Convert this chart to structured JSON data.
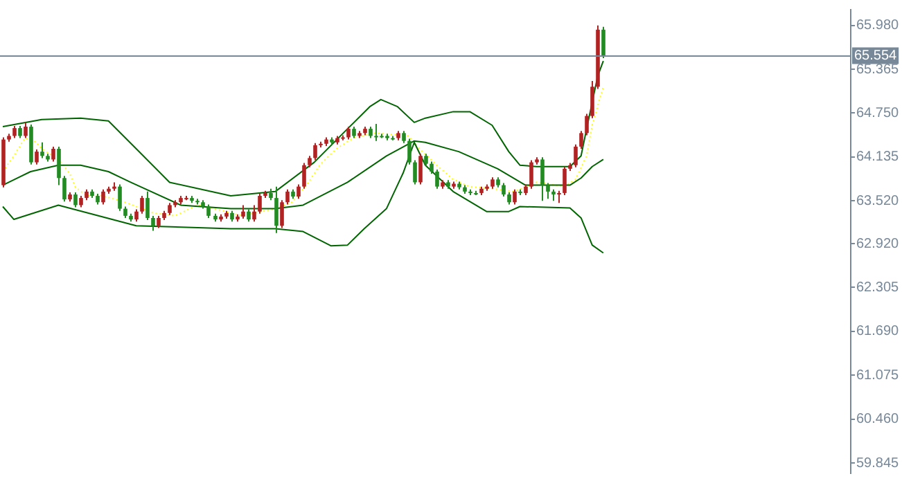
{
  "chart_data": {
    "type": "candlestick",
    "categories": [
      null,
      null,
      null,
      null,
      null,
      null,
      null,
      null,
      null,
      null,
      null,
      null,
      null,
      null,
      null,
      null,
      null,
      null,
      null,
      null,
      null,
      null,
      null,
      null,
      null,
      null,
      null,
      null,
      null,
      null,
      null,
      null,
      null,
      null,
      null,
      null,
      null,
      null,
      null,
      null,
      null,
      null,
      null,
      null,
      null,
      null,
      null,
      null,
      null,
      null,
      null,
      null,
      null,
      null,
      null,
      null,
      null,
      null,
      null,
      null,
      null,
      null,
      null,
      null,
      null,
      null,
      null,
      null,
      null,
      null,
      null,
      null,
      null,
      null,
      null,
      null,
      null,
      null,
      null,
      null,
      null,
      null,
      null,
      null,
      null,
      null,
      null,
      null,
      null,
      null,
      null,
      null,
      null,
      null,
      null,
      null,
      null,
      null,
      null,
      null,
      null,
      null,
      null,
      null,
      null,
      null,
      null,
      null,
      null,
      null,
      null,
      null,
      null,
      null,
      null,
      null,
      null,
      null,
      null,
      null,
      null,
      null,
      null,
      null,
      null,
      null,
      null,
      null,
      null,
      null,
      null,
      null,
      null,
      null,
      null,
      null,
      null,
      null,
      null,
      null,
      null,
      null,
      null,
      null,
      null,
      null,
      null,
      null,
      null,
      null,
      null,
      null,
      null
    ],
    "ohlc": [
      [
        63.74,
        64.41,
        63.71,
        64.38
      ],
      [
        64.38,
        64.46,
        64.35,
        64.43
      ],
      [
        64.43,
        64.57,
        64.4,
        64.54
      ],
      [
        64.54,
        64.57,
        64.4,
        64.43
      ],
      [
        64.43,
        64.62,
        64.4,
        64.56
      ],
      [
        64.56,
        64.59,
        64.03,
        64.06
      ],
      [
        64.06,
        64.24,
        64.03,
        64.21
      ],
      [
        64.21,
        64.34,
        64.12,
        64.15
      ],
      [
        64.15,
        64.18,
        64.07,
        64.1
      ],
      [
        64.1,
        64.28,
        64.07,
        64.25
      ],
      [
        64.25,
        64.28,
        63.74,
        63.84
      ],
      [
        63.84,
        63.87,
        63.51,
        63.54
      ],
      [
        63.54,
        63.64,
        63.51,
        63.61
      ],
      [
        63.61,
        63.64,
        63.43,
        63.46
      ],
      [
        63.46,
        63.59,
        63.43,
        63.56
      ],
      [
        63.56,
        63.68,
        63.53,
        63.65
      ],
      [
        63.65,
        63.68,
        63.56,
        63.59
      ],
      [
        63.59,
        63.62,
        63.47,
        63.5
      ],
      [
        63.5,
        63.68,
        63.47,
        63.65
      ],
      [
        63.65,
        63.72,
        63.62,
        63.69
      ],
      [
        63.69,
        63.78,
        63.66,
        63.72
      ],
      [
        63.72,
        63.75,
        63.38,
        63.41
      ],
      [
        63.41,
        63.44,
        63.28,
        63.31
      ],
      [
        63.31,
        63.34,
        63.23,
        63.26
      ],
      [
        63.26,
        63.4,
        63.23,
        63.37
      ],
      [
        63.37,
        63.59,
        63.34,
        63.56
      ],
      [
        63.56,
        63.65,
        63.25,
        63.28
      ],
      [
        63.28,
        63.31,
        63.1,
        63.17
      ],
      [
        63.17,
        63.31,
        63.14,
        63.28
      ],
      [
        63.28,
        63.38,
        63.25,
        63.35
      ],
      [
        63.35,
        63.49,
        63.32,
        63.46
      ],
      [
        63.46,
        63.53,
        63.43,
        63.5
      ],
      [
        63.5,
        63.59,
        63.47,
        63.56
      ],
      [
        63.56,
        63.59,
        63.53,
        63.56
      ],
      [
        63.56,
        63.59,
        63.49,
        63.52
      ],
      [
        63.52,
        63.55,
        63.47,
        63.5
      ],
      [
        63.5,
        63.53,
        63.41,
        63.44
      ],
      [
        63.44,
        63.47,
        63.28,
        63.31
      ],
      [
        63.31,
        63.34,
        63.23,
        63.26
      ],
      [
        63.26,
        63.33,
        63.23,
        63.3
      ],
      [
        63.3,
        63.38,
        63.27,
        63.35
      ],
      [
        63.35,
        63.38,
        63.23,
        63.26
      ],
      [
        63.26,
        63.33,
        63.23,
        63.3
      ],
      [
        63.3,
        63.46,
        63.27,
        63.37
      ],
      [
        63.37,
        63.4,
        63.23,
        63.26
      ],
      [
        63.26,
        63.46,
        63.23,
        63.37
      ],
      [
        63.37,
        63.62,
        63.34,
        63.59
      ],
      [
        63.59,
        63.66,
        63.56,
        63.63
      ],
      [
        63.63,
        63.69,
        63.53,
        63.56
      ],
      [
        63.56,
        63.72,
        63.07,
        63.17
      ],
      [
        63.17,
        63.53,
        63.14,
        63.5
      ],
      [
        63.5,
        63.68,
        63.47,
        63.65
      ],
      [
        63.65,
        63.68,
        63.55,
        63.58
      ],
      [
        63.58,
        63.75,
        63.55,
        63.72
      ],
      [
        63.72,
        64.05,
        63.69,
        64.02
      ],
      [
        64.02,
        64.15,
        63.99,
        64.12
      ],
      [
        64.12,
        64.33,
        64.09,
        64.3
      ],
      [
        64.3,
        64.35,
        64.27,
        64.32
      ],
      [
        64.32,
        64.41,
        64.29,
        64.38
      ],
      [
        64.38,
        64.41,
        64.31,
        64.34
      ],
      [
        64.34,
        64.43,
        64.31,
        64.4
      ],
      [
        64.4,
        64.44,
        64.37,
        64.41
      ],
      [
        64.41,
        64.56,
        64.38,
        64.53
      ],
      [
        64.53,
        64.56,
        64.4,
        64.43
      ],
      [
        64.43,
        64.5,
        64.4,
        64.47
      ],
      [
        64.47,
        64.56,
        64.44,
        64.53
      ],
      [
        64.53,
        64.56,
        64.4,
        64.43
      ],
      [
        64.43,
        64.6,
        64.36,
        64.43
      ],
      [
        64.43,
        64.46,
        64.4,
        64.43
      ],
      [
        64.43,
        64.46,
        64.37,
        64.4
      ],
      [
        64.4,
        64.43,
        64.37,
        64.4
      ],
      [
        64.4,
        64.5,
        64.37,
        64.47
      ],
      [
        64.47,
        64.5,
        64.33,
        64.36
      ],
      [
        64.36,
        64.39,
        64.03,
        64.06
      ],
      [
        64.06,
        64.09,
        63.75,
        63.78
      ],
      [
        63.78,
        64.18,
        63.75,
        64.15
      ],
      [
        64.15,
        64.18,
        64.01,
        64.04
      ],
      [
        64.04,
        64.07,
        63.9,
        63.93
      ],
      [
        63.93,
        63.96,
        63.69,
        63.72
      ],
      [
        63.72,
        63.81,
        63.69,
        63.78
      ],
      [
        63.78,
        63.81,
        63.69,
        63.72
      ],
      [
        63.72,
        63.79,
        63.69,
        63.76
      ],
      [
        63.76,
        63.79,
        63.68,
        63.71
      ],
      [
        63.71,
        63.74,
        63.62,
        63.65
      ],
      [
        63.65,
        63.68,
        63.6,
        63.63
      ],
      [
        63.63,
        63.66,
        63.6,
        63.63
      ],
      [
        63.63,
        63.72,
        63.6,
        63.69
      ],
      [
        63.69,
        63.75,
        63.66,
        63.72
      ],
      [
        63.72,
        63.85,
        63.69,
        63.82
      ],
      [
        63.82,
        63.85,
        63.71,
        63.74
      ],
      [
        63.74,
        63.77,
        63.58,
        63.61
      ],
      [
        63.61,
        63.64,
        63.47,
        63.5
      ],
      [
        63.5,
        63.68,
        63.47,
        63.65
      ],
      [
        63.65,
        63.68,
        63.6,
        63.63
      ],
      [
        63.63,
        63.75,
        63.6,
        63.72
      ],
      [
        63.72,
        64.09,
        63.69,
        64.06
      ],
      [
        64.06,
        64.13,
        64.03,
        64.1
      ],
      [
        64.1,
        64.13,
        63.52,
        63.74
      ],
      [
        63.74,
        63.77,
        63.55,
        63.65
      ],
      [
        63.65,
        63.68,
        63.52,
        63.61
      ],
      [
        63.61,
        63.66,
        63.49,
        63.63
      ],
      [
        63.63,
        64.0,
        63.6,
        63.97
      ],
      [
        63.97,
        64.05,
        63.94,
        64.02
      ],
      [
        64.02,
        64.31,
        63.99,
        64.28
      ],
      [
        64.28,
        64.5,
        64.25,
        64.47
      ],
      [
        64.47,
        64.74,
        64.44,
        64.71
      ],
      [
        64.71,
        65.2,
        64.68,
        65.12
      ],
      [
        65.12,
        65.98,
        65.09,
        65.92
      ],
      [
        65.92,
        65.96,
        65.52,
        65.55
      ],
      null,
      null,
      null,
      null,
      null,
      null,
      null,
      null,
      null,
      null,
      null,
      null,
      null,
      null,
      null,
      null,
      null,
      null,
      null,
      null,
      null,
      null,
      null,
      null,
      null,
      null,
      null,
      null,
      null,
      null,
      null,
      null,
      null,
      null,
      null,
      null,
      null,
      null,
      null,
      null,
      null,
      null,
      null,
      null
    ],
    "colors": [
      "#b22222",
      "#b22222",
      "#b22222",
      "#228b22",
      "#b22222",
      "#228b22",
      "#b22222",
      "#228b22",
      "#228b22",
      "#b22222",
      "#228b22",
      "#228b22",
      "#b22222",
      "#228b22",
      "#b22222",
      "#b22222",
      "#228b22",
      "#228b22",
      "#b22222",
      "#b22222",
      "#b22222",
      "#228b22",
      "#228b22",
      "#228b22",
      "#b22222",
      "#b22222",
      "#228b22",
      "#228b22",
      "#b22222",
      "#b22222",
      "#b22222",
      "#b22222",
      "#b22222",
      "#b22222",
      "#228b22",
      "#228b22",
      "#228b22",
      "#228b22",
      "#228b22",
      "#b22222",
      "#b22222",
      "#228b22",
      "#b22222",
      "#b22222",
      "#228b22",
      "#b22222",
      "#b22222",
      "#b22222",
      "#228b22",
      "#228b22",
      "#b22222",
      "#b22222",
      "#228b22",
      "#b22222",
      "#b22222",
      "#b22222",
      "#b22222",
      "#b22222",
      "#b22222",
      "#228b22",
      "#b22222",
      "#b22222",
      "#b22222",
      "#228b22",
      "#b22222",
      "#b22222",
      "#228b22",
      "#228b22",
      "#228b22",
      "#228b22",
      "#228b22",
      "#b22222",
      "#228b22",
      "#228b22",
      "#228b22",
      "#b22222",
      "#228b22",
      "#228b22",
      "#228b22",
      "#b22222",
      "#228b22",
      "#b22222",
      "#228b22",
      "#228b22",
      "#228b22",
      "#228b22",
      "#b22222",
      "#b22222",
      "#b22222",
      "#228b22",
      "#228b22",
      "#228b22",
      "#b22222",
      "#228b22",
      "#b22222",
      "#b22222",
      "#b22222",
      "#228b22",
      "#228b22",
      "#228b22",
      "#b22222",
      "#b22222",
      "#b22222",
      "#b22222",
      "#b22222",
      "#b22222",
      "#b22222",
      "#b22222",
      "#228b22",
      null,
      null,
      null,
      null,
      null,
      null,
      null,
      null,
      null,
      null,
      null,
      null,
      null,
      null,
      null,
      null,
      null,
      null,
      null,
      null,
      null,
      null,
      null,
      null,
      null,
      null,
      null,
      null,
      null,
      null,
      null,
      null,
      null,
      null,
      null,
      null,
      null,
      null,
      null,
      null,
      null,
      null,
      null,
      null
    ],
    "series": [
      {
        "type": "line",
        "color": "#006400",
        "line_style": "solid",
        "values": [
          64.56,
          null,
          null,
          null,
          null,
          null,
          null,
          64.66,
          null,
          null,
          null,
          null,
          null,
          null,
          64.68,
          null,
          null,
          null,
          null,
          64.64,
          null,
          null,
          null,
          null,
          64.25,
          null,
          null,
          null,
          null,
          null,
          63.78,
          null,
          null,
          null,
          null,
          null,
          null,
          null,
          null,
          null,
          null,
          63.59,
          null,
          null,
          null,
          null,
          null,
          null,
          null,
          63.65,
          null,
          null,
          null,
          null,
          null,
          null,
          64.06,
          null,
          null,
          null,
          null,
          null,
          64.53,
          null,
          null,
          null,
          64.84,
          null,
          64.94,
          null,
          null,
          64.84,
          null,
          null,
          64.62,
          null,
          64.68,
          null,
          null,
          null,
          null,
          64.77,
          null,
          null,
          64.77,
          null,
          null,
          null,
          64.58,
          null,
          null,
          64.21,
          null,
          64.02,
          null,
          null,
          64.0,
          null,
          null,
          null,
          null,
          null,
          64.0,
          null,
          64.15,
          64.53,
          null,
          65.27,
          65.48,
          null,
          null,
          null,
          null,
          null,
          null,
          null,
          null,
          null,
          null,
          null,
          null,
          null,
          null,
          null,
          null,
          null,
          null,
          null,
          null,
          null,
          null,
          null,
          null,
          null,
          null,
          null,
          null,
          null,
          null,
          null,
          null,
          null,
          null,
          null,
          null,
          null,
          null,
          null,
          null,
          null,
          null,
          null,
          null
        ]
      },
      {
        "type": "line",
        "color": "#006400",
        "line_style": "solid",
        "values": [
          63.74,
          null,
          null,
          null,
          null,
          63.93,
          null,
          null,
          null,
          null,
          64.02,
          null,
          null,
          null,
          64.02,
          null,
          null,
          null,
          null,
          63.93,
          null,
          null,
          null,
          63.78,
          null,
          null,
          null,
          null,
          null,
          null,
          null,
          null,
          63.46,
          null,
          null,
          null,
          null,
          null,
          null,
          null,
          null,
          63.41,
          null,
          null,
          null,
          null,
          null,
          null,
          null,
          63.41,
          null,
          null,
          null,
          null,
          63.46,
          null,
          null,
          null,
          null,
          null,
          null,
          null,
          63.78,
          null,
          null,
          null,
          null,
          null,
          null,
          64.15,
          null,
          null,
          null,
          null,
          64.36,
          null,
          64.34,
          null,
          null,
          null,
          null,
          null,
          64.21,
          null,
          null,
          null,
          null,
          null,
          null,
          63.97,
          null,
          null,
          null,
          null,
          63.74,
          null,
          null,
          null,
          null,
          null,
          null,
          null,
          63.74,
          null,
          63.84,
          null,
          64.0,
          null,
          64.1,
          null,
          null,
          null,
          null,
          null,
          null,
          null,
          null,
          null,
          null,
          null,
          null,
          null,
          null,
          null,
          null,
          null,
          null,
          null,
          null,
          null,
          null,
          null,
          null,
          null,
          null,
          null,
          null,
          null,
          null,
          null,
          null,
          null,
          null,
          null,
          null,
          null,
          null,
          null,
          null,
          null,
          null,
          null,
          null
        ]
      },
      {
        "type": "line",
        "color": "#006400",
        "line_style": "solid",
        "values": [
          63.44,
          null,
          63.26,
          null,
          null,
          null,
          null,
          null,
          null,
          null,
          63.46,
          null,
          null,
          null,
          null,
          null,
          null,
          null,
          null,
          null,
          null,
          null,
          null,
          null,
          63.17,
          null,
          null,
          null,
          null,
          null,
          null,
          null,
          null,
          null,
          null,
          null,
          null,
          null,
          null,
          null,
          null,
          63.13,
          null,
          null,
          null,
          null,
          null,
          null,
          null,
          63.13,
          null,
          null,
          null,
          null,
          63.09,
          null,
          null,
          null,
          null,
          62.89,
          null,
          null,
          62.9,
          null,
          null,
          63.13,
          null,
          null,
          null,
          63.41,
          null,
          null,
          63.91,
          null,
          64.34,
          null,
          64.02,
          null,
          null,
          null,
          null,
          63.65,
          null,
          null,
          null,
          null,
          null,
          63.37,
          null,
          null,
          null,
          63.37,
          null,
          63.44,
          null,
          null,
          null,
          null,
          null,
          null,
          null,
          null,
          63.42,
          null,
          63.28,
          null,
          62.9,
          null,
          62.79,
          null,
          null,
          null,
          null,
          null,
          null,
          null,
          null,
          null,
          null,
          null,
          null,
          null,
          null,
          null,
          null,
          null,
          null,
          null,
          null,
          null,
          null,
          null,
          null,
          null,
          null,
          null,
          null,
          null,
          null,
          null,
          null,
          null,
          null,
          null,
          null,
          null,
          null,
          null,
          null,
          null,
          null,
          null,
          null
        ]
      },
      {
        "type": "line",
        "color": "#ffff00",
        "line_style": "dotted",
        "values": [
          63.93,
          null,
          64.15,
          null,
          64.4,
          null,
          64.34,
          64.25,
          null,
          null,
          64.1,
          null,
          63.91,
          63.72,
          null,
          63.59,
          null,
          null,
          63.59,
          null,
          null,
          null,
          63.5,
          null,
          null,
          null,
          null,
          63.35,
          null,
          null,
          null,
          63.31,
          null,
          null,
          null,
          63.46,
          null,
          null,
          63.41,
          null,
          null,
          null,
          null,
          63.31,
          null,
          null,
          null,
          null,
          null,
          63.41,
          null,
          null,
          63.5,
          null,
          null,
          63.78,
          null,
          64.02,
          null,
          null,
          64.25,
          null,
          null,
          64.4,
          null,
          null,
          null,
          64.47,
          null,
          null,
          null,
          null,
          null,
          64.43,
          null,
          64.25,
          null,
          null,
          64.02,
          null,
          null,
          63.82,
          null,
          null,
          63.72,
          null,
          null,
          null,
          63.69,
          null,
          null,
          null,
          63.65,
          null,
          null,
          null,
          63.78,
          null,
          null,
          null,
          null,
          63.72,
          null,
          63.82,
          null,
          64.15,
          64.58,
          null,
          65.12,
          null,
          null,
          null,
          null,
          null,
          null,
          null,
          null,
          null,
          null,
          null,
          null,
          null,
          null,
          null,
          null,
          null,
          null,
          null,
          null,
          null,
          null,
          null,
          null,
          null,
          null,
          null,
          null,
          null,
          null,
          null,
          null,
          null,
          null,
          null,
          null,
          null,
          null,
          null,
          null,
          null,
          null,
          null,
          null
        ]
      }
    ],
    "ylim": [
      59.7,
      66.2
    ],
    "yticks": [
      {
        "value": 65.98,
        "label": "65.980"
      },
      65.365,
      {
        "value": 64.75,
        "label": "64.750"
      },
      64.135,
      {
        "value": 63.52,
        "label": "63.520"
      },
      {
        "value": 62.92,
        "label": "62.920"
      },
      62.305,
      {
        "value": 61.69,
        "label": "61.690"
      },
      61.075,
      {
        "value": 60.46,
        "label": "60.460"
      },
      59.845
    ],
    "tick_labels": "y",
    "marker": "none",
    "ref_lines": [
      {
        "axis": "y",
        "value": 65.554,
        "label": "65.554",
        "color": "#778899"
      }
    ]
  }
}
